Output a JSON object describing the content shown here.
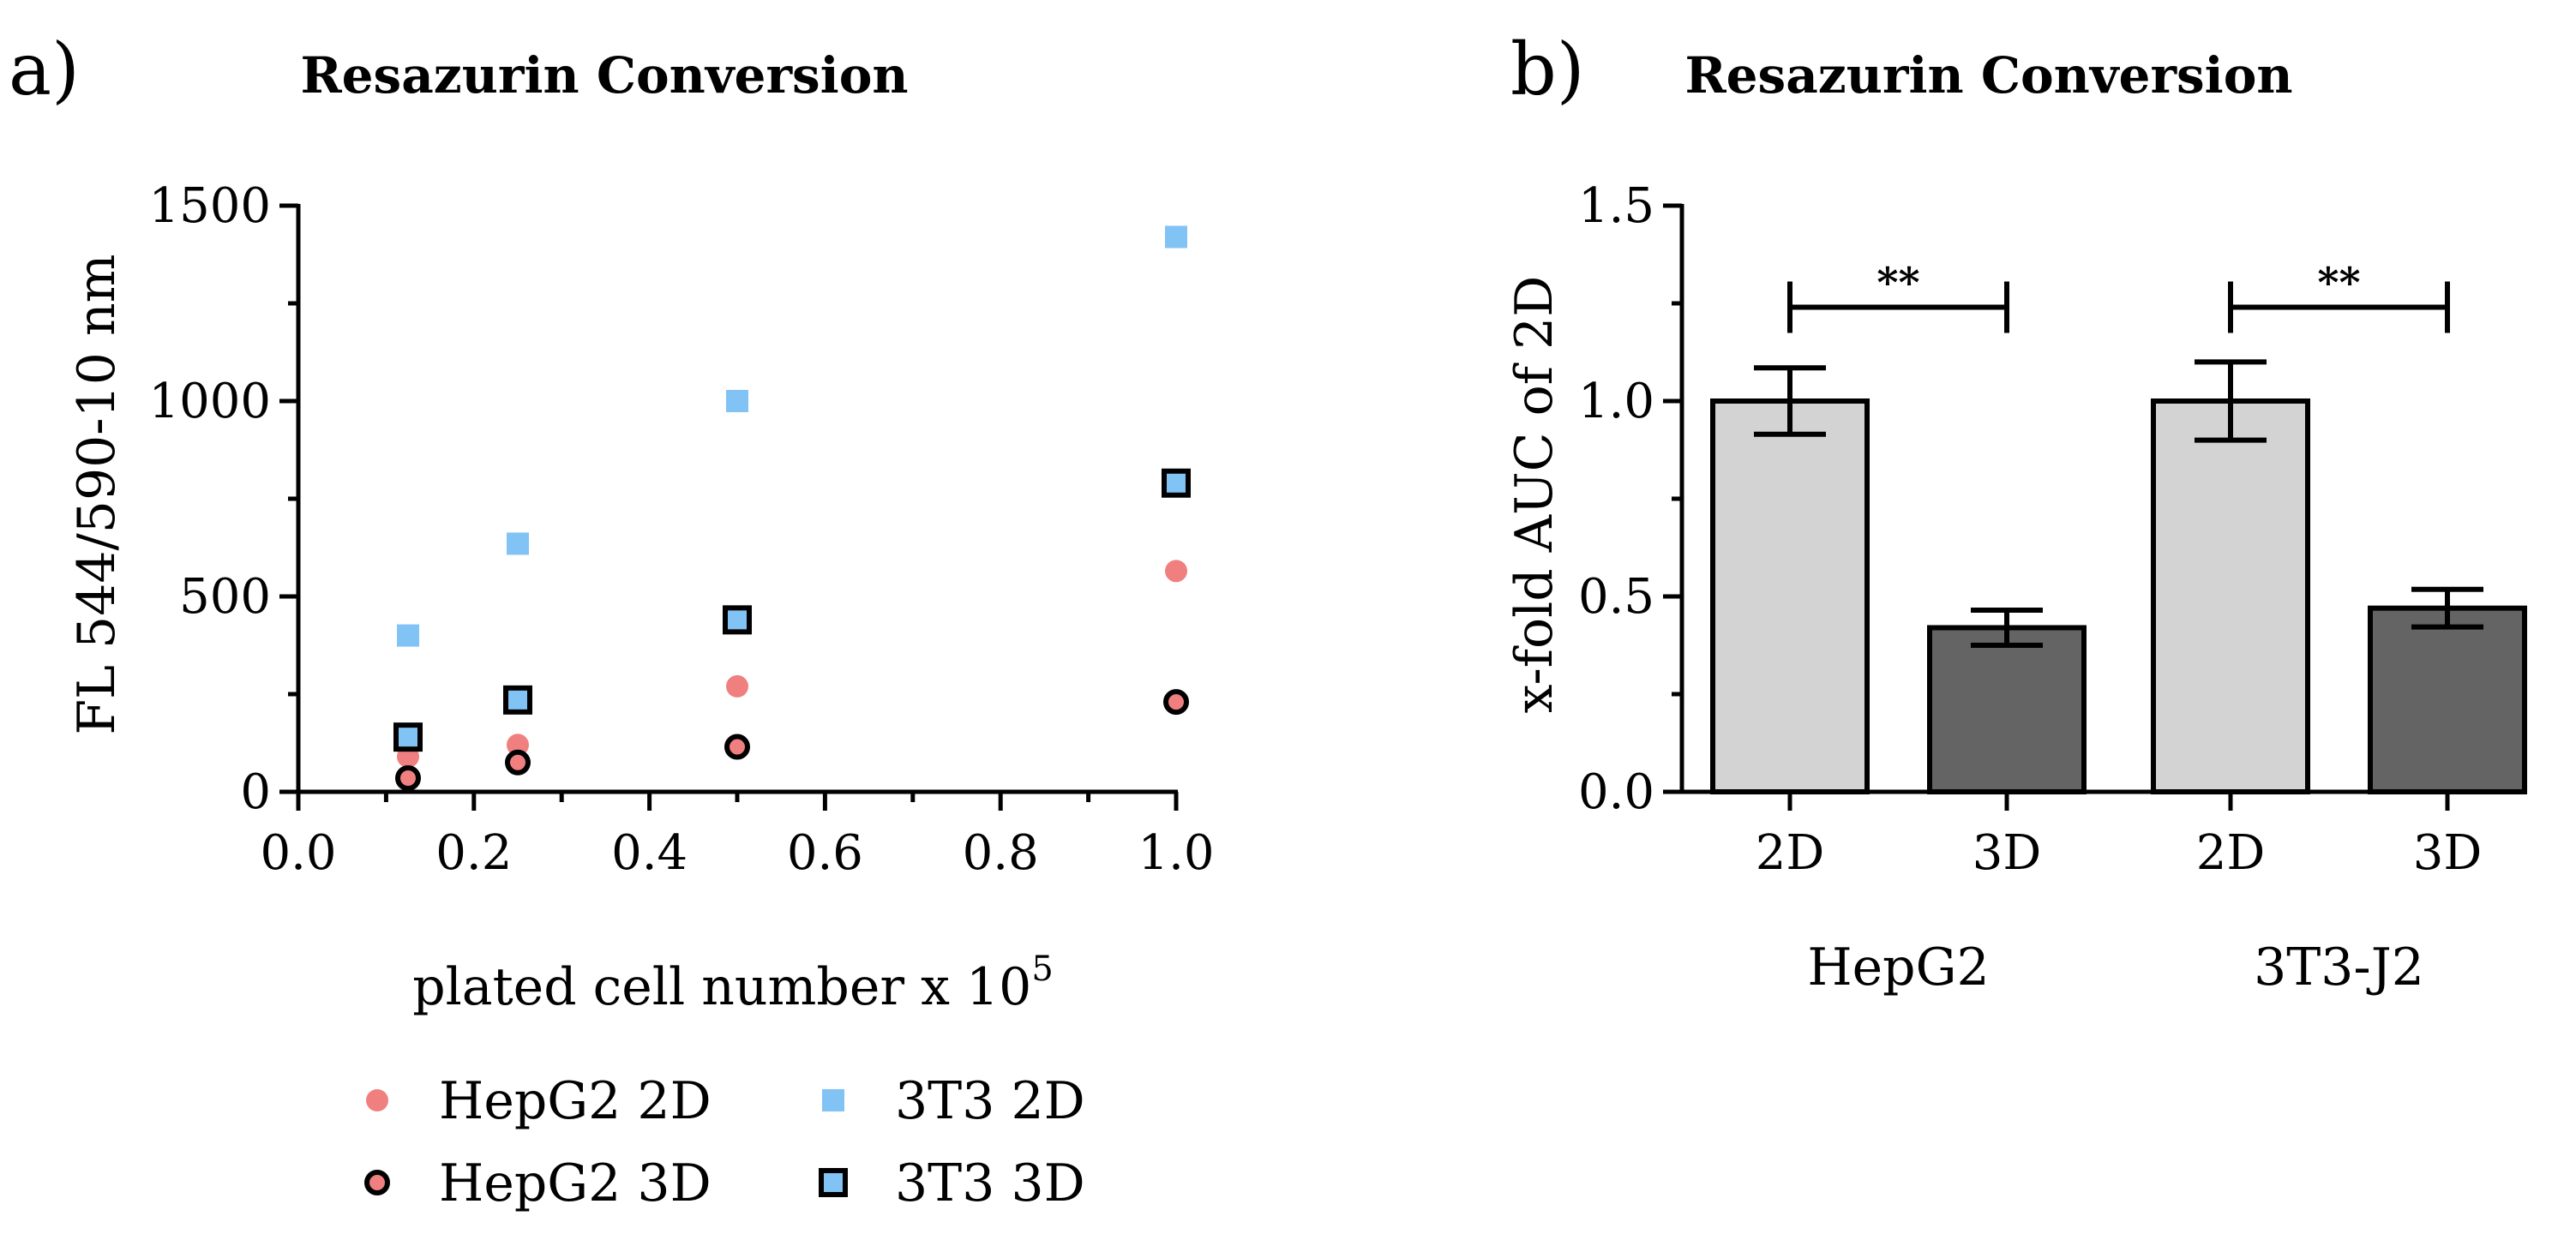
{
  "chart_data": [
    {
      "panel": "a)",
      "type": "scatter",
      "title": "Resazurin Conversion",
      "xlabel": "plated cell number x 10",
      "xlabel_superscript": "5",
      "ylabel": "FL 544/590-10 nm",
      "xlim": [
        0.0,
        1.0
      ],
      "ylim": [
        0,
        1500
      ],
      "xticks": [
        "0.0",
        "0.2",
        "0.4",
        "0.6",
        "0.8",
        "1.0"
      ],
      "yticks": [
        "0",
        "500",
        "1000",
        "1500"
      ],
      "x": [
        0.125,
        0.25,
        0.5,
        1.0
      ],
      "series": [
        {
          "name": "HepG2 2D",
          "marker": "circle",
          "fill": "#f08080",
          "edge": "none",
          "values": [
            90,
            120,
            270,
            565
          ]
        },
        {
          "name": "HepG2 3D",
          "marker": "circle",
          "fill": "#f08080",
          "edge": "#000000",
          "values": [
            35,
            75,
            115,
            230
          ]
        },
        {
          "name": "3T3 2D",
          "marker": "square",
          "fill": "#82c3f5",
          "edge": "none",
          "values": [
            400,
            635,
            1000,
            1420
          ]
        },
        {
          "name": "3T3 3D",
          "marker": "square",
          "fill": "#82c3f5",
          "edge": "#000000",
          "values": [
            140,
            235,
            440,
            790
          ]
        }
      ],
      "legend": "bottom"
    },
    {
      "panel": "b)",
      "type": "bar",
      "title": "Resazurin Conversion",
      "ylabel": "x-fold AUC of 2D",
      "ylim": [
        0.0,
        1.5
      ],
      "yticks": [
        "0.0",
        "0.5",
        "1.0",
        "1.5"
      ],
      "categories": [
        "2D",
        "3D",
        "2D",
        "3D"
      ],
      "groups": [
        "HepG2",
        "3T3-J2"
      ],
      "values": [
        1.0,
        0.42,
        1.0,
        0.47
      ],
      "errors": [
        0.085,
        0.045,
        0.1,
        0.048
      ],
      "bar_colors": [
        "#d3d3d3",
        "#646464",
        "#d3d3d3",
        "#646464"
      ],
      "significance": [
        {
          "from": 0,
          "to": 1,
          "label": "**"
        },
        {
          "from": 2,
          "to": 3,
          "label": "**"
        }
      ]
    }
  ]
}
